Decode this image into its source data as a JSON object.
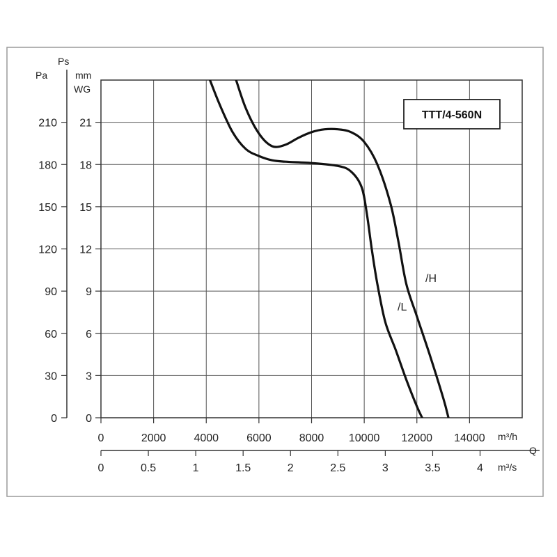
{
  "chart_data": {
    "type": "line",
    "title": "TTT/4-560N",
    "x_axis": {
      "unit": "m³/h",
      "range": [
        0,
        16000
      ],
      "ticks": [
        0,
        2000,
        4000,
        6000,
        8000,
        10000,
        12000,
        14000
      ]
    },
    "x2_axis": {
      "unit": "m³/s",
      "ticks": [
        "0",
        "0.5",
        "1",
        "1.5",
        "2",
        "2.5",
        "3",
        "3.5",
        "4"
      ]
    },
    "q_label": "Q",
    "y_axis_pa": {
      "label": "Pa",
      "ticks": [
        "0",
        "30",
        "60",
        "90",
        "120",
        "150",
        "180",
        "210"
      ]
    },
    "y_axis_mm": {
      "label_top": "Ps",
      "label_unit_1": "mm",
      "label_unit_2": "WG",
      "range": [
        0,
        24
      ],
      "ticks": [
        "0",
        "3",
        "6",
        "9",
        "12",
        "15",
        "18",
        "21"
      ]
    },
    "grid": true,
    "series": [
      {
        "name": "/H",
        "x": [
          5100,
          5500,
          6000,
          6500,
          7000,
          7500,
          8000,
          8500,
          9000,
          9500,
          10000,
          10500,
          11000,
          11300,
          11600,
          12000,
          12500,
          13000,
          13200
        ],
        "y": [
          24.2,
          22.0,
          20.2,
          19.3,
          19.4,
          19.9,
          20.3,
          20.5,
          20.5,
          20.3,
          19.6,
          18.0,
          15.2,
          12.5,
          9.5,
          7.2,
          4.4,
          1.4,
          0
        ]
      },
      {
        "name": "/L",
        "x": [
          4100,
          4500,
          5000,
          5500,
          6000,
          6500,
          7000,
          8000,
          9000,
          9500,
          9900,
          10100,
          10300,
          10500,
          10800,
          11200,
          11600,
          12000,
          12200
        ],
        "y": [
          24.2,
          22.3,
          20.3,
          19.1,
          18.6,
          18.3,
          18.2,
          18.1,
          17.9,
          17.5,
          16.4,
          14.5,
          11.8,
          9.5,
          6.8,
          4.8,
          2.7,
          0.8,
          0
        ]
      }
    ]
  }
}
